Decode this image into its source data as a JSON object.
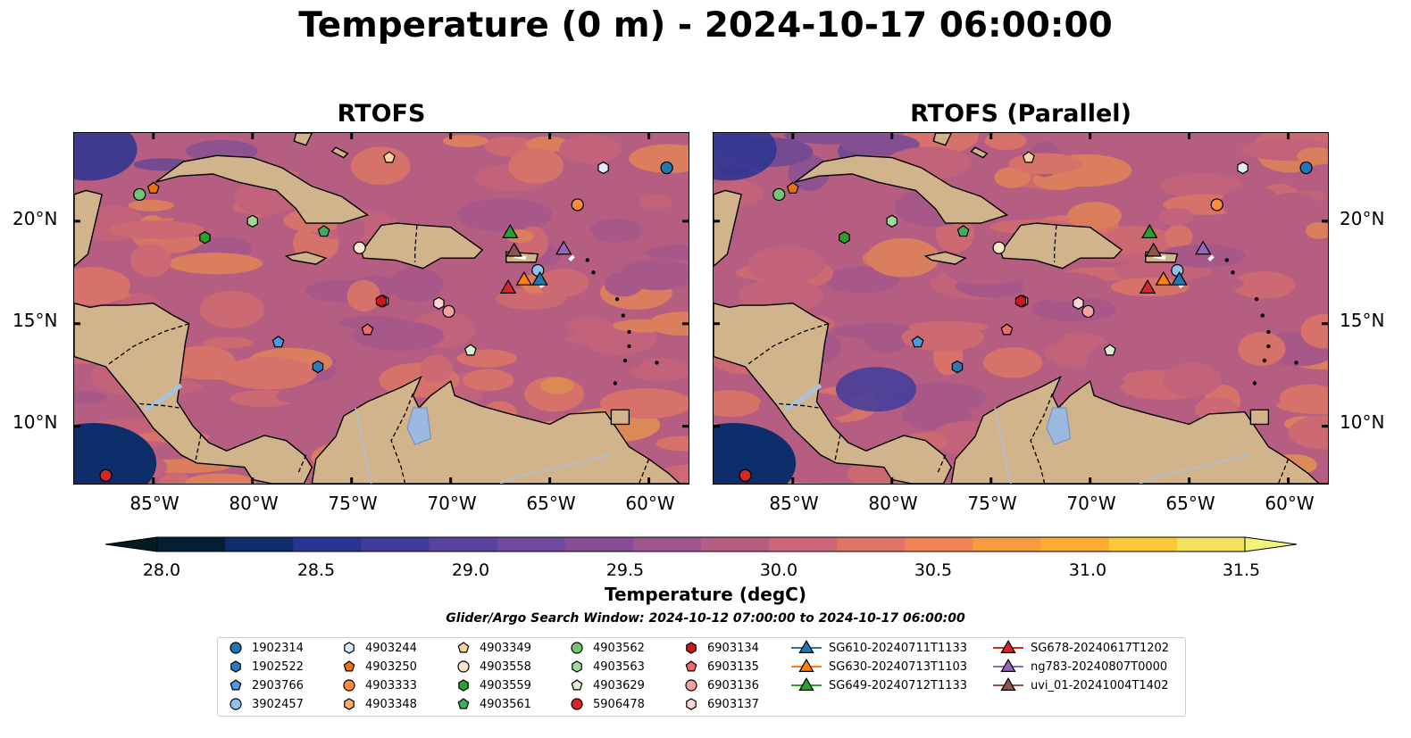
{
  "figure": {
    "suptitle": "Temperature (0 m) - 2024-10-17 06:00:00",
    "panels": [
      {
        "title": "RTOFS"
      },
      {
        "title": "RTOFS (Parallel)"
      }
    ],
    "lon_ticks": [
      "85°W",
      "80°W",
      "75°W",
      "70°W",
      "65°W",
      "60°W"
    ],
    "lat_ticks": [
      "20°N",
      "15°N",
      "10°N"
    ],
    "extent": {
      "lon_min": -89,
      "lon_max": -58,
      "lat_min": 7.2,
      "lat_max": 24.3
    },
    "colorbar": {
      "label": "Temperature (degC)",
      "ticks": [
        "28.0",
        "28.5",
        "29.0",
        "29.5",
        "30.0",
        "30.5",
        "31.0",
        "31.5"
      ],
      "vmin": 28.0,
      "vmax": 31.75,
      "colors": [
        "#041e33",
        "#0e2d6b",
        "#2a3493",
        "#3f3c9c",
        "#5a43a0",
        "#6f4a9e",
        "#874e97",
        "#9e548d",
        "#b65d82",
        "#cc6777",
        "#e07467",
        "#f18456",
        "#f89a40",
        "#fcae34",
        "#fbc838",
        "#f5e15d"
      ],
      "extend_low": "#021a22",
      "extend_high": "#f2f47a"
    },
    "search_window": "Glider/Argo Search Window: 2024-10-12 07:00:00 to 2024-10-17 06:00:00"
  },
  "legend": {
    "columns": [
      [
        {
          "label": "1902314",
          "marker": "circle",
          "color": "#1f77b4"
        },
        {
          "label": "1902522",
          "marker": "hexagon",
          "color": "#2e78b8"
        },
        {
          "label": "2903766",
          "marker": "pentagon",
          "color": "#4a9be0"
        },
        {
          "label": "3902457",
          "marker": "circle",
          "color": "#8ec1ec"
        }
      ],
      [
        {
          "label": "4903244",
          "marker": "hexagon",
          "color": "#dcecf9"
        },
        {
          "label": "4903250",
          "marker": "pentagon",
          "color": "#ec7014"
        },
        {
          "label": "4903333",
          "marker": "circle",
          "color": "#fd8d3c"
        },
        {
          "label": "4903348",
          "marker": "hexagon",
          "color": "#fdae6b"
        }
      ],
      [
        {
          "label": "4903349",
          "marker": "pentagon",
          "color": "#fdd0a2"
        },
        {
          "label": "4903558",
          "marker": "circle",
          "color": "#fee6ce"
        },
        {
          "label": "4903559",
          "marker": "hexagon",
          "color": "#2ca02c"
        },
        {
          "label": "4903561",
          "marker": "pentagon",
          "color": "#41ab5d"
        }
      ],
      [
        {
          "label": "4903562",
          "marker": "circle",
          "color": "#74c476"
        },
        {
          "label": "4903563",
          "marker": "hexagon",
          "color": "#a1d99b"
        },
        {
          "label": "4903629",
          "marker": "pentagon",
          "color": "#d9f0d3"
        },
        {
          "label": "5906478",
          "marker": "circle",
          "color": "#d62728"
        }
      ],
      [
        {
          "label": "6903134",
          "marker": "hexagon",
          "color": "#cb181d"
        },
        {
          "label": "6903135",
          "marker": "pentagon",
          "color": "#ef6a6a"
        },
        {
          "label": "6903136",
          "marker": "circle",
          "color": "#f4a0a0"
        },
        {
          "label": "6903137",
          "marker": "hexagon",
          "color": "#fcd5d5"
        }
      ],
      [
        {
          "label": "SG610-20240711T1133",
          "marker": "triangle-line",
          "color": "#1f77b4"
        },
        {
          "label": "SG630-20240713T1103",
          "marker": "triangle-line",
          "color": "#ff7f0e"
        },
        {
          "label": "SG649-20240712T1133",
          "marker": "triangle-line",
          "color": "#2ca02c"
        }
      ],
      [
        {
          "label": "SG678-20240617T1202",
          "marker": "triangle-line",
          "color": "#d62728"
        },
        {
          "label": "ng783-20240807T0000",
          "marker": "triangle-line",
          "color": "#9467bd"
        },
        {
          "label": "uvi_01-20241004T1402",
          "marker": "triangle-line",
          "color": "#8c564b"
        }
      ]
    ]
  },
  "observations": [
    {
      "id": "1902314",
      "lon": -59.1,
      "lat": 22.6
    },
    {
      "id": "1902522",
      "lon": -76.7,
      "lat": 12.9
    },
    {
      "id": "2903766",
      "lon": -78.7,
      "lat": 14.1
    },
    {
      "id": "3902457",
      "lon": -65.6,
      "lat": 17.6
    },
    {
      "id": "4903244",
      "lon": -62.3,
      "lat": 22.6
    },
    {
      "id": "4903250",
      "lon": -85.0,
      "lat": 21.6
    },
    {
      "id": "4903333",
      "lon": -63.6,
      "lat": 20.8
    },
    {
      "id": "4903348",
      "lon": -73.4,
      "lat": 16.1
    },
    {
      "id": "4903349",
      "lon": -73.1,
      "lat": 23.1
    },
    {
      "id": "4903558",
      "lon": -74.6,
      "lat": 18.7
    },
    {
      "id": "4903559",
      "lon": -82.4,
      "lat": 19.2
    },
    {
      "id": "4903561",
      "lon": -76.4,
      "lat": 19.5
    },
    {
      "id": "4903562",
      "lon": -85.7,
      "lat": 21.3
    },
    {
      "id": "4903563",
      "lon": -80.0,
      "lat": 20.0
    },
    {
      "id": "4903629",
      "lon": -69.0,
      "lat": 13.7
    },
    {
      "id": "5906478",
      "lon": -87.4,
      "lat": 7.6
    },
    {
      "id": "6903134",
      "lon": -73.5,
      "lat": 16.1
    },
    {
      "id": "6903135",
      "lon": -74.2,
      "lat": 14.7
    },
    {
      "id": "6903136",
      "lon": -70.1,
      "lat": 15.6
    },
    {
      "id": "6903137",
      "lon": -70.6,
      "lat": 16.0
    },
    {
      "id": "SG610-20240711T1133",
      "lon": -65.5,
      "lat": 17.1
    },
    {
      "id": "SG630-20240713T1103",
      "lon": -66.3,
      "lat": 17.1
    },
    {
      "id": "SG649-20240712T1133",
      "lon": -67.0,
      "lat": 19.4
    },
    {
      "id": "SG678-20240617T1202",
      "lon": -67.1,
      "lat": 16.7
    },
    {
      "id": "ng783-20240807T0000",
      "lon": -64.3,
      "lat": 18.6
    },
    {
      "id": "uvi_01-20241004T1402",
      "lon": -66.8,
      "lat": 18.5
    }
  ]
}
